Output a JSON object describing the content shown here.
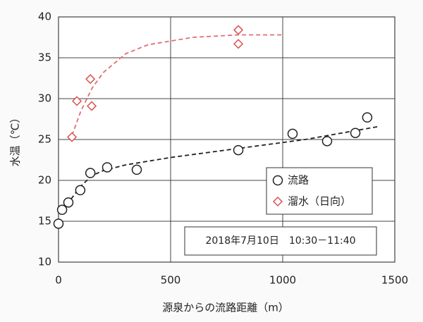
{
  "chart_data": {
    "type": "scatter",
    "x_label": "源泉からの流路距離（m）",
    "y_label": "水温（℃）",
    "annotation": "2018年7月10日　10:30－11:40",
    "xlim": [
      0,
      1500
    ],
    "xticks": [
      0,
      500,
      1000,
      1500
    ],
    "ylim": [
      10,
      40
    ],
    "yticks": [
      10,
      15,
      20,
      25,
      30,
      35,
      40
    ],
    "grid": true,
    "legend": "right",
    "series": [
      {
        "name": "流路",
        "marker": "circle",
        "color": "#222222",
        "x": [
          0,
          16,
          44,
          97,
          142,
          217,
          349,
          802,
          1044,
          1198,
          1324,
          1377
        ],
        "values": [
          14.7,
          16.4,
          17.3,
          18.8,
          20.9,
          21.6,
          21.3,
          23.7,
          25.7,
          24.8,
          25.8,
          27.7
        ]
      },
      {
        "name": "溜水（日向）",
        "marker": "diamond",
        "color": "#d9534f",
        "x": [
          60,
          82,
          142,
          148,
          802,
          802
        ],
        "values": [
          25.3,
          29.7,
          32.4,
          29.1,
          38.4,
          36.7
        ]
      }
    ],
    "trendlines": [
      {
        "color": "#222222",
        "x": [
          20,
          50,
          100,
          150,
          200,
          300,
          500,
          800,
          1100,
          1430
        ],
        "values": [
          16.3,
          17.5,
          19.3,
          20.6,
          21.2,
          21.9,
          22.8,
          23.9,
          25.0,
          26.6
        ]
      },
      {
        "color": "#e07070",
        "x": [
          60,
          100,
          150,
          200,
          300,
          400,
          600,
          800,
          1000
        ],
        "values": [
          25.5,
          28.5,
          31.3,
          33.2,
          35.5,
          36.6,
          37.5,
          37.8,
          37.8
        ]
      }
    ]
  }
}
